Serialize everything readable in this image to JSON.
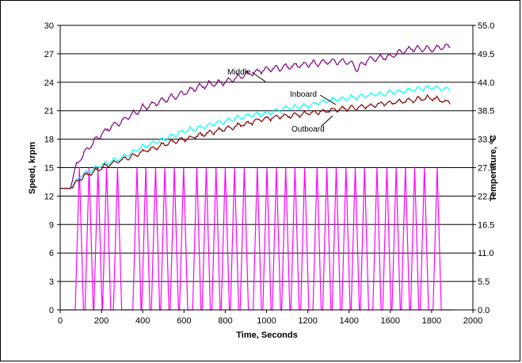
{
  "chart_data": {
    "type": "line",
    "title": "",
    "xlabel": "Time, Seconds",
    "ylabel_left": "Speed, krpm",
    "ylabel_right": "Temperature, ºC",
    "xlim": [
      0,
      2000
    ],
    "ylim_left": [
      0,
      30
    ],
    "ylim_right": [
      0,
      55
    ],
    "x_ticks": [
      "0",
      "200",
      "400",
      "600",
      "800",
      "1000",
      "1200",
      "1400",
      "1600",
      "1800",
      "2000"
    ],
    "y_ticks_left": [
      "0",
      "3",
      "6",
      "9",
      "12",
      "15",
      "18",
      "21",
      "24",
      "27",
      "30"
    ],
    "y_ticks_right": [
      "0.0",
      "5.5",
      "11.0",
      "16.5",
      "22.0",
      "27.5",
      "33.0",
      "38.5",
      "44.0",
      "49.5",
      "55.0"
    ],
    "grid": "horizontal",
    "legend": "none",
    "annotations": [
      {
        "text": "Middle",
        "series": "Middle"
      },
      {
        "text": "Inboard",
        "series": "Inboard"
      },
      {
        "text": "Outboard",
        "series": "Outboard"
      }
    ],
    "speed_series": {
      "axis": "left",
      "color": "#ff00ff",
      "description_cycle": "triangular 0-15 krpm cycles",
      "peaks_x": [
        93,
        140,
        183,
        225,
        278,
        372,
        415,
        462,
        507,
        553,
        598,
        662,
        708,
        755,
        800,
        845,
        892,
        955,
        1002,
        1048,
        1093,
        1138,
        1185,
        1245,
        1292,
        1338,
        1385,
        1430,
        1475,
        1535,
        1583,
        1628,
        1673,
        1718,
        1765,
        1827
      ],
      "peak_value": 15,
      "cycle_start_x": 50,
      "cycle_end_x": 1900
    },
    "series": [
      {
        "name": "Middle",
        "axis": "right",
        "color": "#800080",
        "x": [
          0,
          50,
          70,
          100,
          150,
          200,
          250,
          300,
          400,
          500,
          600,
          700,
          800,
          900,
          1000,
          1100,
          1200,
          1300,
          1400,
          1440,
          1460,
          1500,
          1600,
          1700,
          1800,
          1890
        ],
        "y": [
          23.5,
          23.5,
          27.0,
          29.5,
          32.0,
          34.0,
          35.5,
          36.5,
          39.0,
          40.5,
          42.0,
          43.5,
          44.0,
          45.5,
          46.5,
          47.0,
          47.5,
          48.0,
          48.0,
          46.5,
          47.5,
          48.5,
          49.0,
          50.5,
          50.5,
          51.0
        ]
      },
      {
        "name": "Inboard",
        "axis": "right",
        "color": "#00ffff",
        "x": [
          0,
          50,
          100,
          150,
          200,
          300,
          400,
          500,
          600,
          700,
          800,
          900,
          1000,
          1100,
          1200,
          1300,
          1400,
          1500,
          1600,
          1700,
          1800,
          1890
        ],
        "y": [
          23.5,
          23.5,
          26.0,
          27.0,
          28.0,
          29.5,
          31.5,
          33.0,
          34.5,
          35.5,
          36.5,
          37.5,
          38.0,
          39.0,
          39.5,
          40.5,
          41.0,
          41.5,
          42.0,
          42.5,
          43.0,
          42.5
        ]
      },
      {
        "name": "Outboard",
        "axis": "right",
        "color": "#800000",
        "x": [
          0,
          50,
          100,
          150,
          200,
          300,
          400,
          500,
          600,
          700,
          800,
          900,
          1000,
          1100,
          1200,
          1300,
          1400,
          1500,
          1600,
          1700,
          1800,
          1890
        ],
        "y": [
          23.5,
          23.5,
          25.5,
          26.5,
          27.5,
          29.0,
          30.5,
          32.0,
          33.0,
          34.0,
          35.0,
          36.0,
          37.0,
          37.5,
          38.0,
          38.5,
          39.0,
          39.5,
          40.0,
          40.5,
          41.0,
          40.0
        ]
      }
    ]
  }
}
